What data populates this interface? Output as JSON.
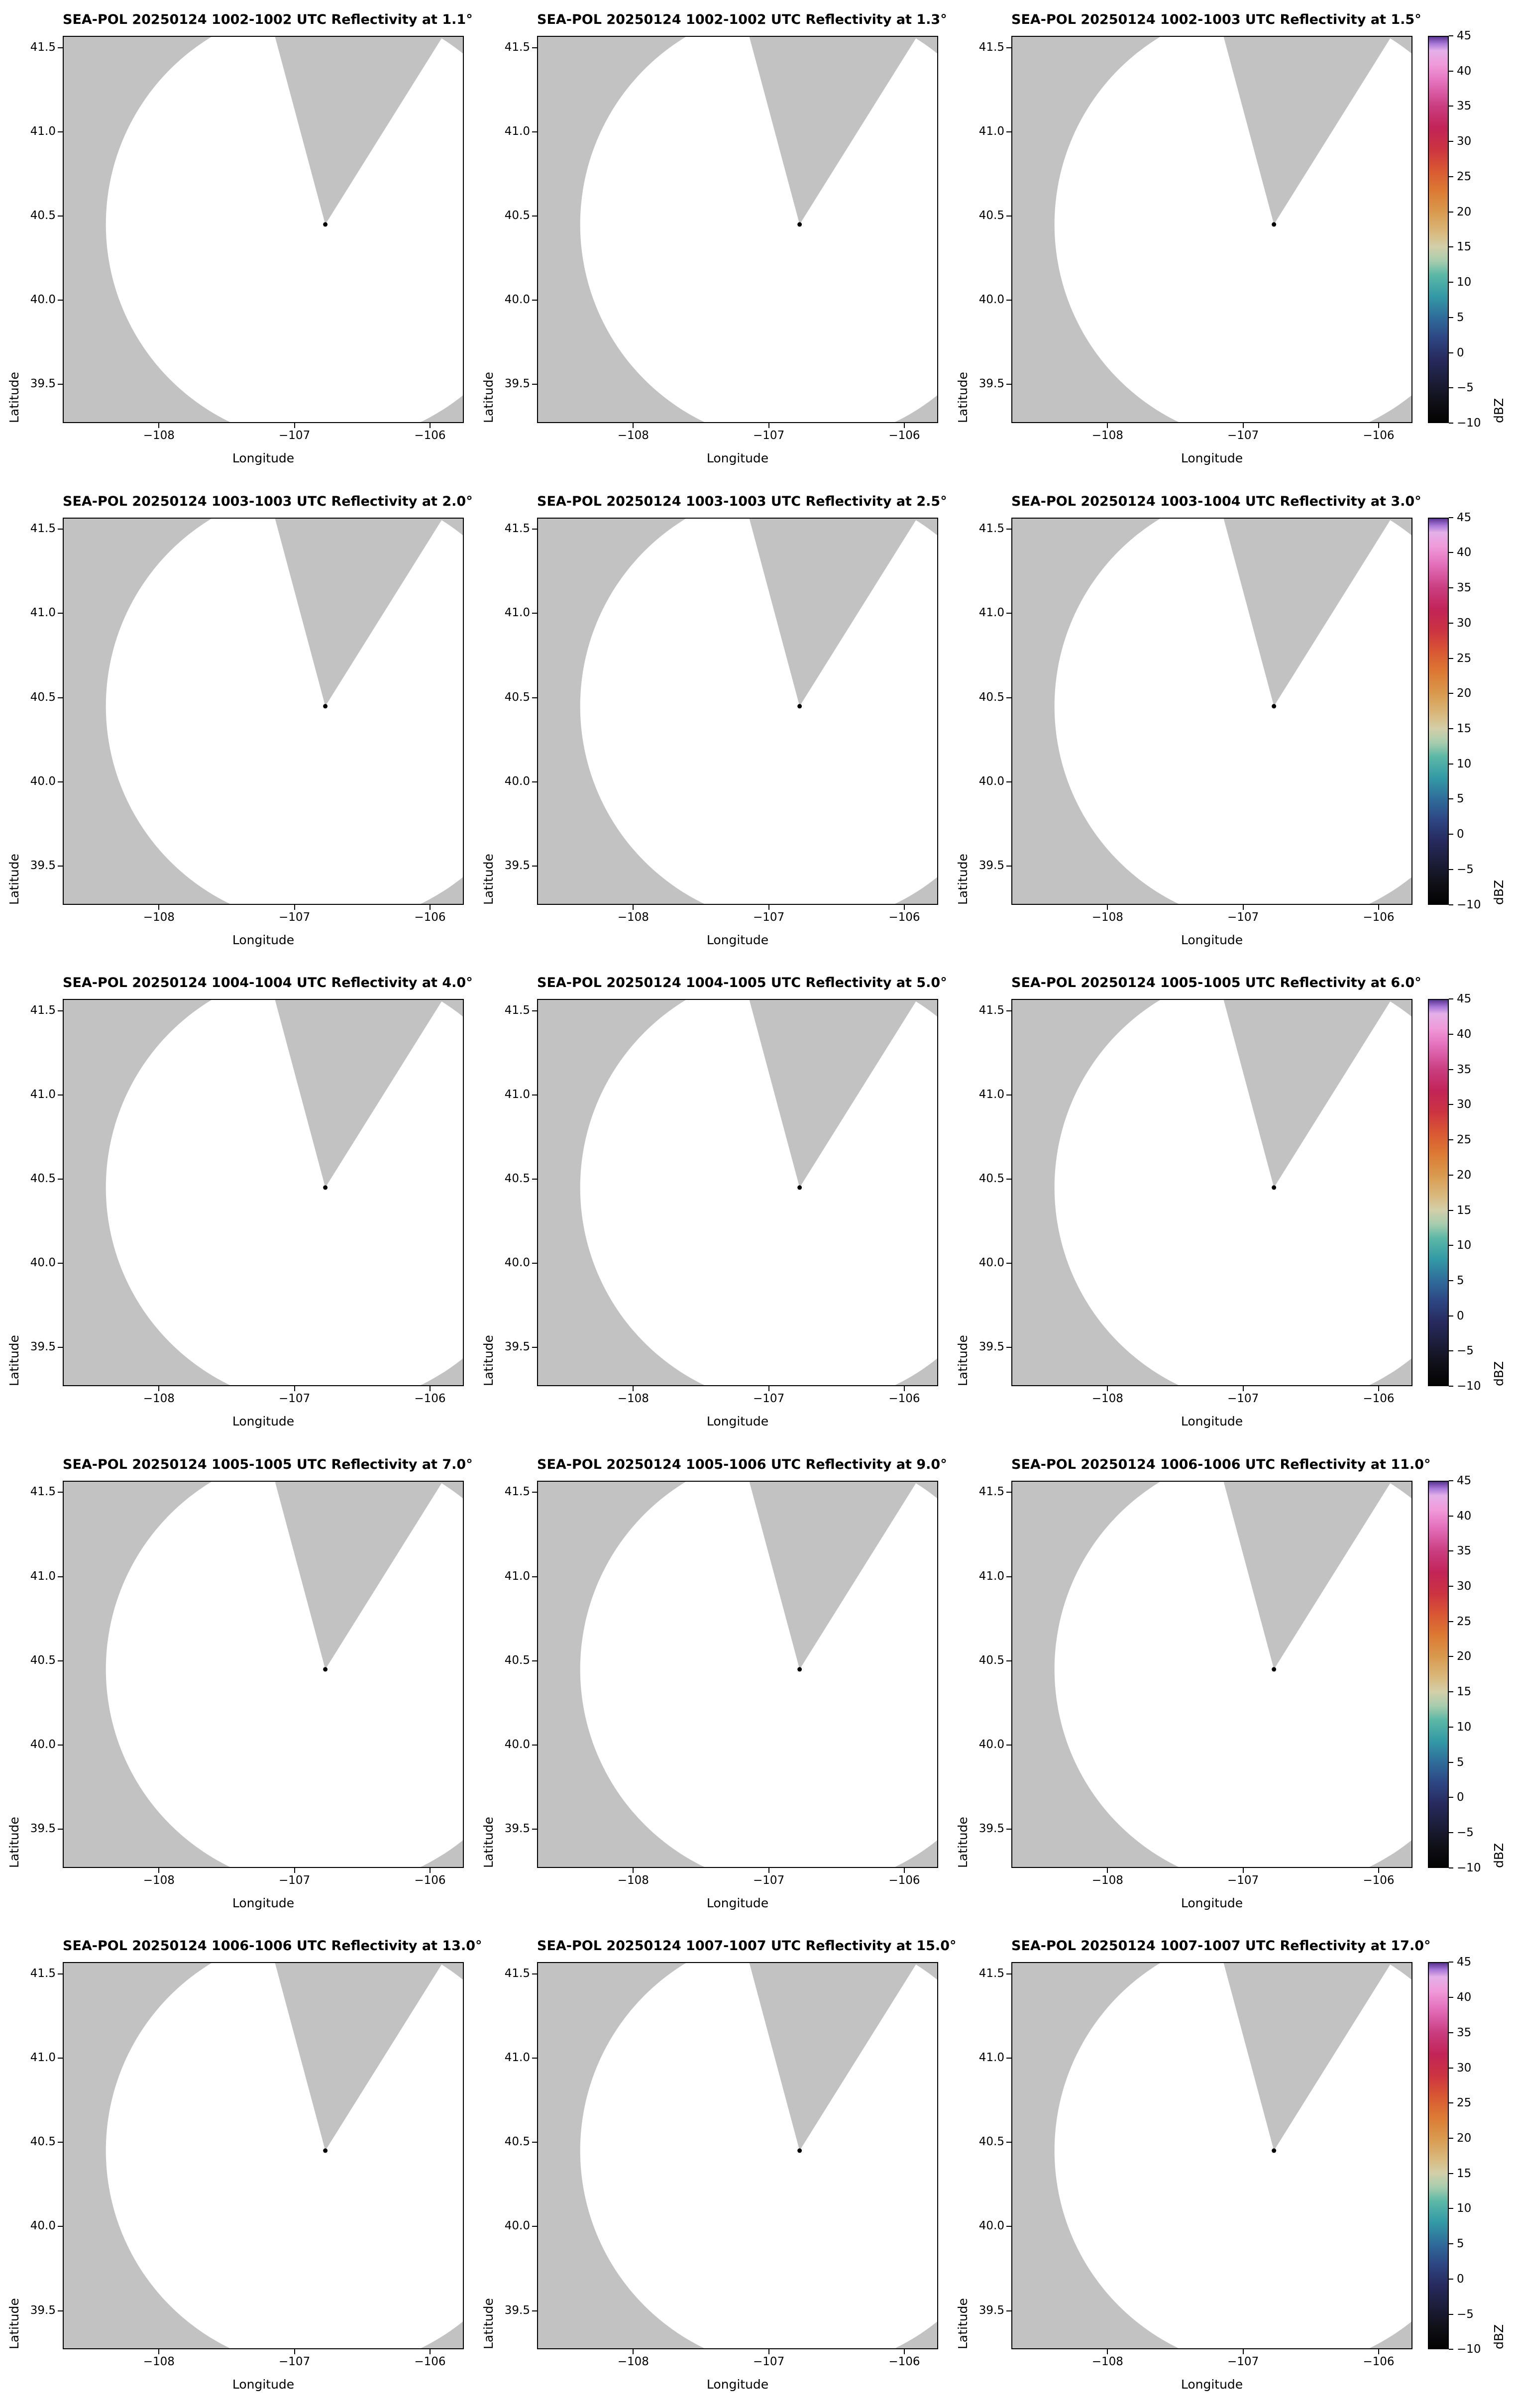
{
  "figure": {
    "axes": {
      "xlabel": "Longitude",
      "ylabel": "Latitude",
      "xticks": [
        "−108",
        "−107",
        "−106"
      ],
      "yticks": [
        "41.5",
        "41.0",
        "40.5",
        "40.0",
        "39.5"
      ]
    },
    "colorbar": {
      "label": "dBZ",
      "ticks": [
        "45",
        "40",
        "35",
        "30",
        "25",
        "20",
        "15",
        "10",
        "5",
        "0",
        "−5",
        "−10"
      ]
    },
    "colors": {
      "no_data_gray": "#c2c2c2",
      "coverage_white": "#ffffff",
      "radar_dot": "#000000"
    },
    "panels": [
      {
        "title": "SEA-POL 20250124 1002-1002 UTC Reflectivity at 1.1°"
      },
      {
        "title": "SEA-POL 20250124 1002-1002 UTC Reflectivity at 1.3°"
      },
      {
        "title": "SEA-POL 20250124 1002-1003 UTC Reflectivity at 1.5°"
      },
      {
        "title": "SEA-POL 20250124 1003-1003 UTC Reflectivity at 2.0°"
      },
      {
        "title": "SEA-POL 20250124 1003-1003 UTC Reflectivity at 2.5°"
      },
      {
        "title": "SEA-POL 20250124 1003-1004 UTC Reflectivity at 3.0°"
      },
      {
        "title": "SEA-POL 20250124 1004-1004 UTC Reflectivity at 4.0°"
      },
      {
        "title": "SEA-POL 20250124 1004-1005 UTC Reflectivity at 5.0°"
      },
      {
        "title": "SEA-POL 20250124 1005-1005 UTC Reflectivity at 6.0°"
      },
      {
        "title": "SEA-POL 20250124 1005-1005 UTC Reflectivity at 7.0°"
      },
      {
        "title": "SEA-POL 20250124 1005-1006 UTC Reflectivity at 9.0°"
      },
      {
        "title": "SEA-POL 20250124 1006-1006 UTC Reflectivity at 11.0°"
      },
      {
        "title": "SEA-POL 20250124 1006-1006 UTC Reflectivity at 13.0°"
      },
      {
        "title": "SEA-POL 20250124 1007-1007 UTC Reflectivity at 15.0°"
      },
      {
        "title": "SEA-POL 20250124 1007-1007 UTC Reflectivity at 17.0°"
      }
    ]
  },
  "chart_data": {
    "type": "heatmap",
    "layout": "small-multiples",
    "rows": 5,
    "cols": 3,
    "radar_name": "SEA-POL",
    "date": "20250124",
    "xlabel": "Longitude",
    "ylabel": "Latitude",
    "xlim": [
      -108.71,
      -105.75
    ],
    "ylim": [
      39.27,
      41.57
    ],
    "xticks": [
      -108,
      -107,
      -106
    ],
    "yticks": [
      41.5,
      41.0,
      40.5,
      40.0,
      39.5
    ],
    "grid": false,
    "radar": {
      "lon": -106.77,
      "lat": 40.45
    },
    "coverage_radius_deg_lat": 1.31,
    "blocked_sector_deg": [
      -15,
      32
    ],
    "field_note": "All panels show an empty PPI scan: white radar coverage circle (no reflectivity echoes above threshold), gray no-data background, gray blocked azimuth wedge north-northeast of the radar, black dot at radar location.",
    "panels": [
      {
        "time_utc": "1002-1002",
        "elevation_deg": 1.1
      },
      {
        "time_utc": "1002-1002",
        "elevation_deg": 1.3
      },
      {
        "time_utc": "1002-1003",
        "elevation_deg": 1.5
      },
      {
        "time_utc": "1003-1003",
        "elevation_deg": 2.0
      },
      {
        "time_utc": "1003-1003",
        "elevation_deg": 2.5
      },
      {
        "time_utc": "1003-1004",
        "elevation_deg": 3.0
      },
      {
        "time_utc": "1004-1004",
        "elevation_deg": 4.0
      },
      {
        "time_utc": "1004-1005",
        "elevation_deg": 5.0
      },
      {
        "time_utc": "1005-1005",
        "elevation_deg": 6.0
      },
      {
        "time_utc": "1005-1005",
        "elevation_deg": 7.0
      },
      {
        "time_utc": "1005-1006",
        "elevation_deg": 9.0
      },
      {
        "time_utc": "1006-1006",
        "elevation_deg": 11.0
      },
      {
        "time_utc": "1006-1006",
        "elevation_deg": 13.0
      },
      {
        "time_utc": "1007-1007",
        "elevation_deg": 15.0
      },
      {
        "time_utc": "1007-1007",
        "elevation_deg": 17.0
      }
    ],
    "colorbar": {
      "label": "dBZ",
      "min": -10,
      "max": 45,
      "tick_values": [
        45,
        40,
        35,
        30,
        25,
        20,
        15,
        10,
        5,
        0,
        -5,
        -10
      ],
      "stops": [
        {
          "value": -10,
          "color": "#030303"
        },
        {
          "value": -7,
          "color": "#101018"
        },
        {
          "value": -4,
          "color": "#1c1e3a"
        },
        {
          "value": -1,
          "color": "#272a5e"
        },
        {
          "value": 2,
          "color": "#2d4683"
        },
        {
          "value": 5,
          "color": "#2f6d9b"
        },
        {
          "value": 8,
          "color": "#339aa5"
        },
        {
          "value": 11,
          "color": "#5cb8a6"
        },
        {
          "value": 13,
          "color": "#a7cdae"
        },
        {
          "value": 15,
          "color": "#d3cfa9"
        },
        {
          "value": 17,
          "color": "#d9b97e"
        },
        {
          "value": 20,
          "color": "#d99a4e"
        },
        {
          "value": 23,
          "color": "#dc7a33"
        },
        {
          "value": 26,
          "color": "#d95733"
        },
        {
          "value": 29,
          "color": "#cc3341"
        },
        {
          "value": 32,
          "color": "#c22457"
        },
        {
          "value": 35,
          "color": "#c93d7e"
        },
        {
          "value": 37,
          "color": "#d85aa2"
        },
        {
          "value": 39,
          "color": "#e678c2"
        },
        {
          "value": 41,
          "color": "#f09ad9"
        },
        {
          "value": 43,
          "color": "#e3b0e8"
        },
        {
          "value": 44,
          "color": "#a878d8"
        },
        {
          "value": 45,
          "color": "#5a3593"
        }
      ]
    }
  }
}
